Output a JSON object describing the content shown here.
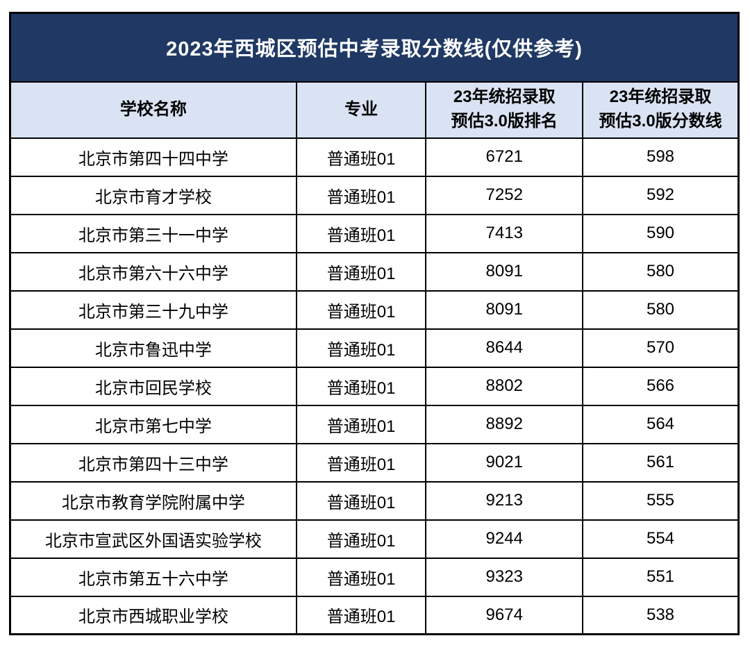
{
  "chart_data": {
    "type": "table",
    "title": "2023年西城区预估中考录取分数线(仅供参考)",
    "columns": [
      "学校名称",
      "专业",
      "23年统招录取\n预估3.0版排名",
      "23年统招录取\n预估3.0版分数线"
    ],
    "rows": [
      [
        "北京市第四十四中学",
        "普通班01",
        6721,
        598
      ],
      [
        "北京市育才学校",
        "普通班01",
        7252,
        592
      ],
      [
        "北京市第三十一中学",
        "普通班01",
        7413,
        590
      ],
      [
        "北京市第六十六中学",
        "普通班01",
        8091,
        580
      ],
      [
        "北京市第三十九中学",
        "普通班01",
        8091,
        580
      ],
      [
        "北京市鲁迅中学",
        "普通班01",
        8644,
        570
      ],
      [
        "北京市回民学校",
        "普通班01",
        8802,
        566
      ],
      [
        "北京市第七中学",
        "普通班01",
        8892,
        564
      ],
      [
        "北京市第四十三中学",
        "普通班01",
        9021,
        561
      ],
      [
        "北京市教育学院附属中学",
        "普通班01",
        9213,
        555
      ],
      [
        "北京市宣武区外国语实验学校",
        "普通班01",
        9244,
        554
      ],
      [
        "北京市第五十六中学",
        "普通班01",
        9323,
        551
      ],
      [
        "北京市西城职业学校",
        "普通班01",
        9674,
        538
      ]
    ],
    "layout": {
      "legend": "none",
      "grid": "full black cell borders"
    },
    "colors": {
      "title_bg": "#1f3864",
      "title_text": "#ffffff",
      "header_bg": "#dae3f3",
      "body_bg": "#ffffff",
      "border": "#000000",
      "body_text": "#000000"
    }
  }
}
